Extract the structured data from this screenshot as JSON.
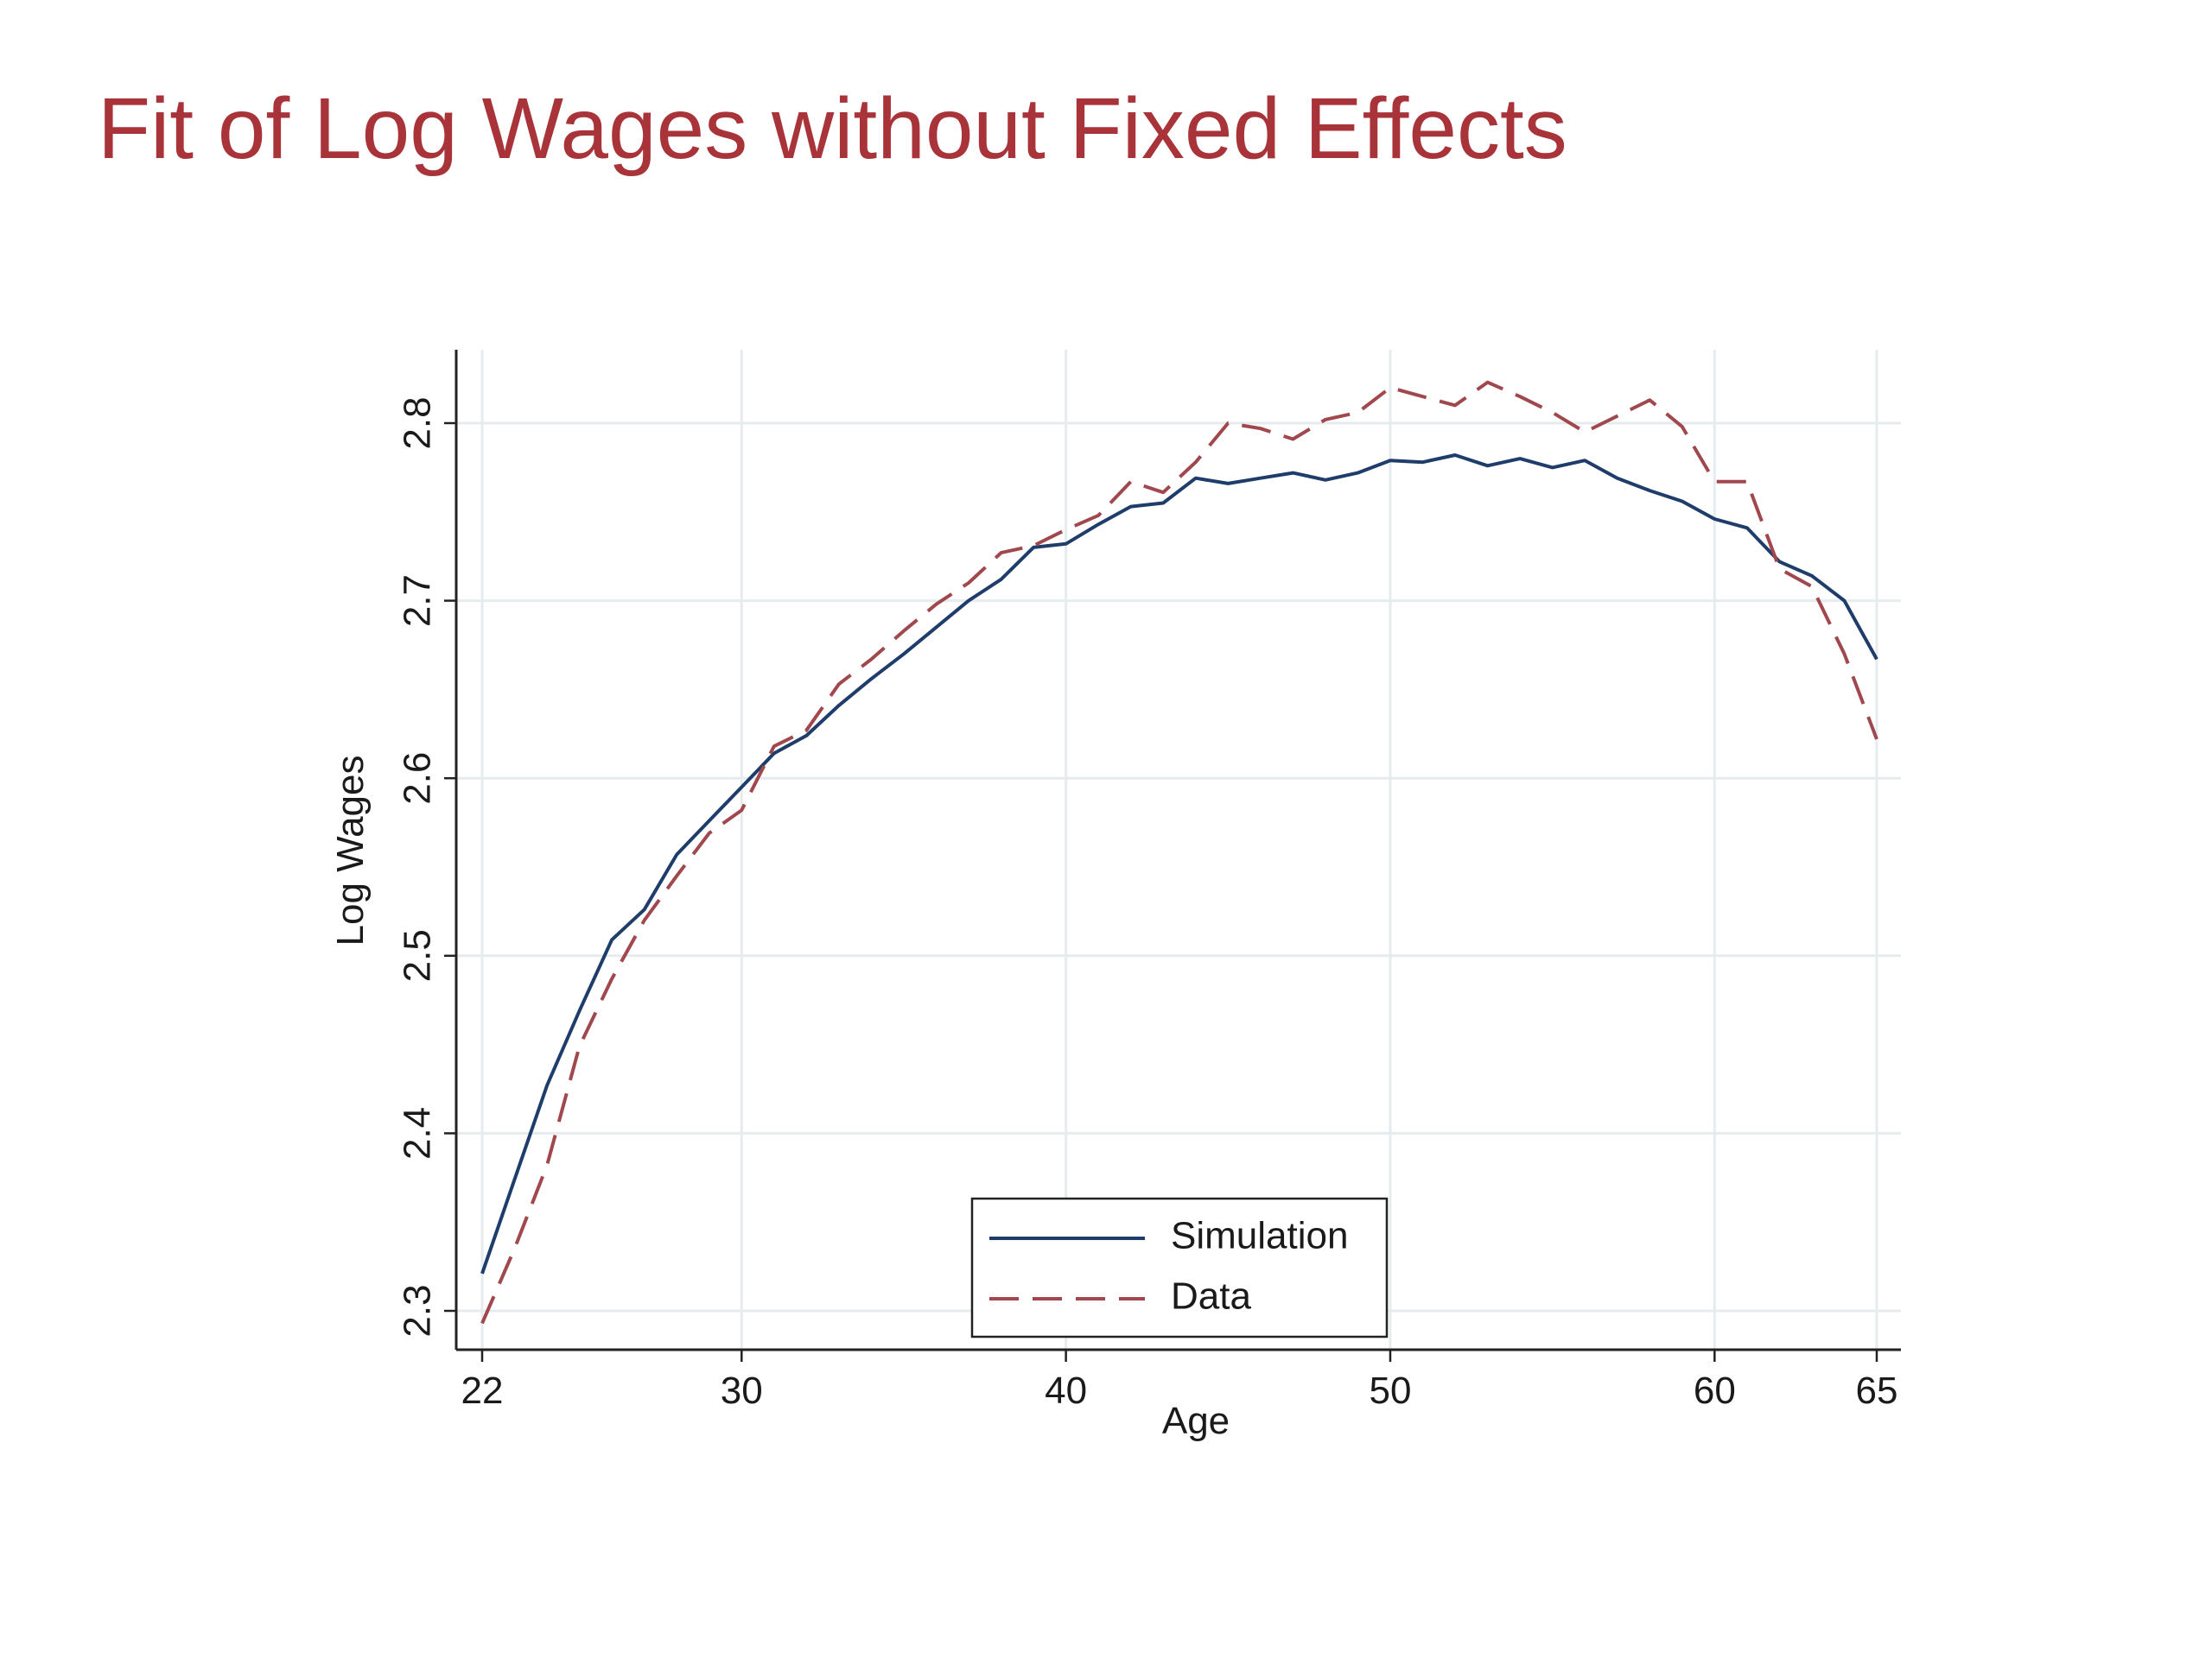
{
  "slide": {
    "title": "Fit of Log Wages without Fixed Effects",
    "title_color": "#A8343A"
  },
  "chart_data": {
    "type": "line",
    "title": "",
    "xlabel": "Age",
    "ylabel": "Log Wages",
    "xlim": [
      22,
      65
    ],
    "ylim": [
      2.29,
      2.84
    ],
    "x_ticks": [
      22,
      30,
      40,
      50,
      60,
      65
    ],
    "y_ticks": [
      "2.3",
      "2.4",
      "2.5",
      "2.6",
      "2.7",
      "2.8"
    ],
    "grid": true,
    "legend_position": "bottom-center",
    "x": [
      22,
      23,
      24,
      25,
      26,
      27,
      28,
      29,
      30,
      31,
      32,
      33,
      34,
      35,
      36,
      37,
      38,
      39,
      40,
      41,
      42,
      43,
      44,
      45,
      46,
      47,
      48,
      49,
      50,
      51,
      52,
      53,
      54,
      55,
      56,
      57,
      58,
      59,
      60,
      61,
      62,
      63,
      64,
      65
    ],
    "series": [
      {
        "name": "Simulation",
        "color": "#1F3D6B",
        "dash": "solid",
        "values": [
          2.321,
          2.374,
          2.427,
          2.469,
          2.509,
          2.526,
          2.557,
          2.576,
          2.595,
          2.614,
          2.624,
          2.641,
          2.656,
          2.67,
          2.685,
          2.7,
          2.712,
          2.73,
          2.732,
          2.743,
          2.753,
          2.755,
          2.769,
          2.766,
          2.769,
          2.772,
          2.768,
          2.772,
          2.779,
          2.778,
          2.782,
          2.776,
          2.78,
          2.775,
          2.779,
          2.769,
          2.762,
          2.756,
          2.746,
          2.741,
          2.722,
          2.714,
          2.7,
          2.667
        ]
      },
      {
        "name": "Data",
        "color": "#A0484E",
        "dash": "dashed",
        "values": [
          2.293,
          2.335,
          2.382,
          2.449,
          2.487,
          2.52,
          2.545,
          2.569,
          2.582,
          2.618,
          2.627,
          2.653,
          2.667,
          2.683,
          2.698,
          2.71,
          2.727,
          2.731,
          2.74,
          2.748,
          2.767,
          2.761,
          2.778,
          2.8,
          2.797,
          2.791,
          2.802,
          2.806,
          2.82,
          2.815,
          2.81,
          2.823,
          2.815,
          2.806,
          2.795,
          2.804,
          2.813,
          2.798,
          2.767,
          2.767,
          2.718,
          2.708,
          2.67,
          2.622
        ]
      }
    ]
  }
}
